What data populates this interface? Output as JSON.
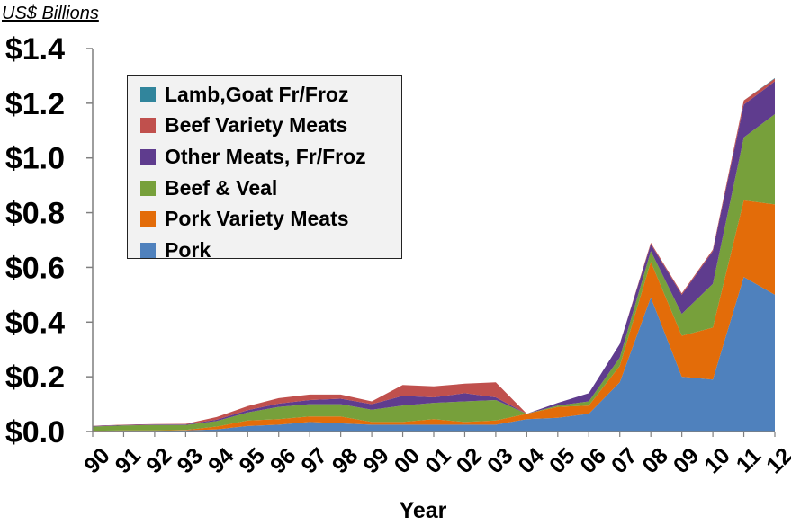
{
  "chart_data": {
    "type": "area",
    "stacked": true,
    "unit_label": "US$ Billions",
    "xlabel": "Year",
    "ylabel": "",
    "x": [
      "90",
      "91",
      "92",
      "93",
      "94",
      "95",
      "96",
      "97",
      "98",
      "99",
      "00",
      "01",
      "02",
      "03",
      "04",
      "05",
      "06",
      "07",
      "08",
      "09",
      "10",
      "11",
      "12"
    ],
    "ylim": [
      0,
      1.4
    ],
    "y_ticks": [
      "$0.0",
      "$0.2",
      "$0.4",
      "$0.6",
      "$0.8",
      "$1.0",
      "$1.2",
      "$1.4"
    ],
    "y_tick_values": [
      0,
      0.2,
      0.4,
      0.6,
      0.8,
      1.0,
      1.2,
      1.4
    ],
    "grid": false,
    "legend_position": "top-left inside",
    "series": [
      {
        "name": "Pork",
        "color": "#4f81bd",
        "values": [
          0.002,
          0.003,
          0.003,
          0.004,
          0.008,
          0.02,
          0.025,
          0.035,
          0.03,
          0.025,
          0.025,
          0.025,
          0.025,
          0.025,
          0.045,
          0.05,
          0.065,
          0.18,
          0.49,
          0.2,
          0.19,
          0.565,
          0.5
        ]
      },
      {
        "name": "Pork Variety Meats",
        "color": "#e36c09",
        "values": [
          0.001,
          0.001,
          0.001,
          0.002,
          0.01,
          0.02,
          0.02,
          0.02,
          0.025,
          0.01,
          0.01,
          0.02,
          0.01,
          0.015,
          0.02,
          0.04,
          0.03,
          0.06,
          0.13,
          0.15,
          0.19,
          0.28,
          0.33
        ]
      },
      {
        "name": "Beef & Veal",
        "color": "#77a03b",
        "values": [
          0.015,
          0.018,
          0.02,
          0.018,
          0.02,
          0.03,
          0.045,
          0.045,
          0.045,
          0.045,
          0.06,
          0.06,
          0.075,
          0.075,
          0.0,
          0.005,
          0.015,
          0.03,
          0.04,
          0.08,
          0.16,
          0.23,
          0.33
        ]
      },
      {
        "name": "Other Meats, Fr/Froz",
        "color": "#5f3c8e",
        "values": [
          0.002,
          0.002,
          0.002,
          0.002,
          0.005,
          0.008,
          0.012,
          0.015,
          0.02,
          0.02,
          0.035,
          0.02,
          0.03,
          0.01,
          0.0,
          0.01,
          0.03,
          0.05,
          0.025,
          0.07,
          0.12,
          0.12,
          0.12
        ]
      },
      {
        "name": "Beef Variety Meats",
        "color": "#c0504d",
        "values": [
          0.001,
          0.001,
          0.001,
          0.002,
          0.01,
          0.015,
          0.02,
          0.02,
          0.015,
          0.01,
          0.04,
          0.04,
          0.035,
          0.055,
          0.0,
          0.0,
          0.0,
          0.0,
          0.005,
          0.005,
          0.005,
          0.015,
          0.01
        ]
      },
      {
        "name": "Lamb,Goat Fr/Froz",
        "color": "#31859c",
        "values": [
          0,
          0,
          0,
          0,
          0,
          0,
          0,
          0,
          0,
          0,
          0,
          0,
          0,
          0,
          0,
          0,
          0,
          0,
          0,
          0,
          0,
          0,
          0.002
        ]
      }
    ],
    "legend_order": [
      "Lamb,Goat Fr/Froz",
      "Beef Variety Meats",
      "Other Meats, Fr/Froz",
      "Beef & Veal",
      "Pork Variety Meats",
      "Pork"
    ]
  }
}
